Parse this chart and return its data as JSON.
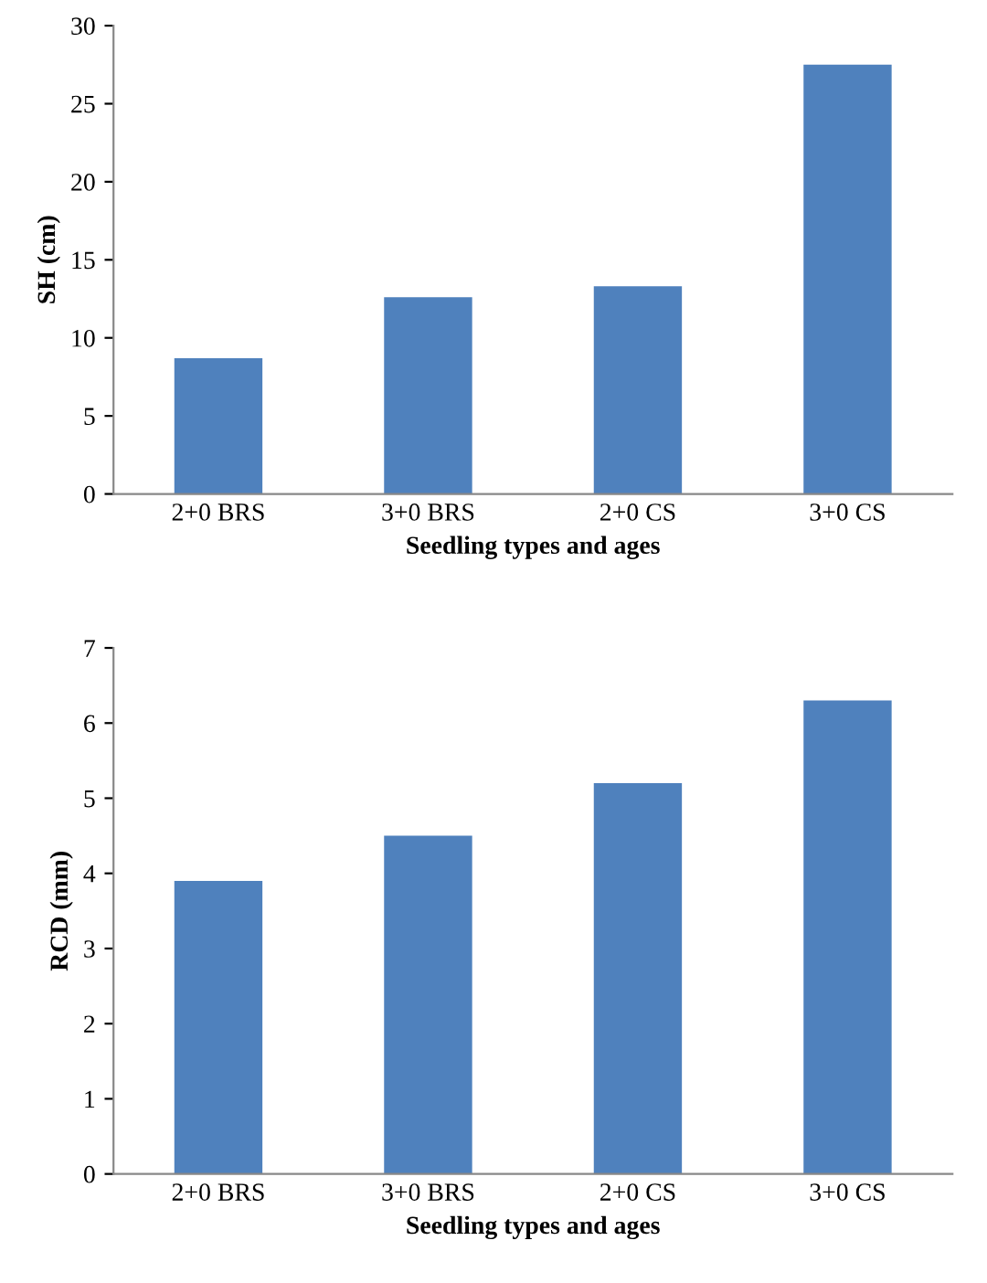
{
  "chart_data": [
    {
      "type": "bar",
      "categories": [
        "2+0 BRS",
        "3+0 BRS",
        "2+0 CS",
        "3+0 CS"
      ],
      "values": [
        8.7,
        12.6,
        13.3,
        27.5
      ],
      "color": "#4f81bd",
      "xlabel": "Seedling types and ages",
      "ylabel": "SH (cm)",
      "ylim": [
        0,
        30
      ],
      "yticks": [
        0,
        5,
        10,
        15,
        20,
        25,
        30
      ],
      "grid": false,
      "legend": false
    },
    {
      "type": "bar",
      "categories": [
        "2+0 BRS",
        "3+0 BRS",
        "2+0 CS",
        "3+0 CS"
      ],
      "values": [
        3.9,
        4.5,
        5.2,
        6.3
      ],
      "color": "#4f81bd",
      "xlabel": "Seedling types and ages",
      "ylabel": "RCD (mm)",
      "ylim": [
        0,
        7
      ],
      "yticks": [
        0,
        1,
        2,
        3,
        4,
        5,
        6,
        7
      ],
      "grid": false,
      "legend": false
    }
  ]
}
